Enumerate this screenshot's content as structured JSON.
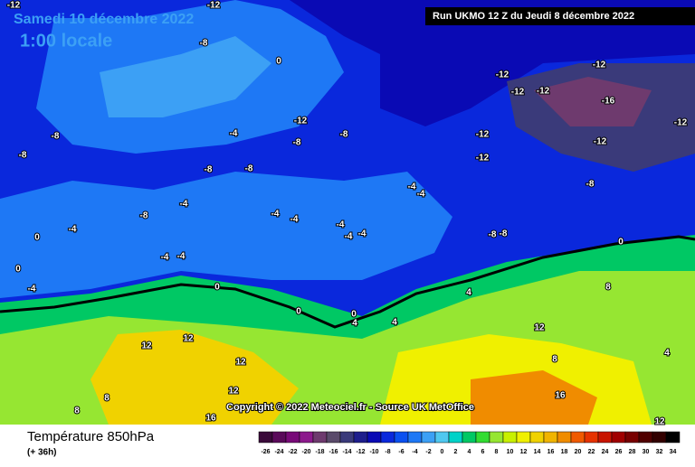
{
  "header": {
    "date": "Samedi 10 décembre 2022",
    "time": "1:00 locale",
    "run": "Run UKMO 12 Z du Jeudi 8 décembre 2022"
  },
  "copyright": "Copyright © 2022 Meteociel.fr - Source UK MetOffice",
  "footer": {
    "title": "Température 850hPa",
    "subtitle": "(+ 36h)"
  },
  "legend": {
    "ticks": [
      -26,
      -24,
      -22,
      -20,
      -18,
      -16,
      -14,
      -12,
      -10,
      -8,
      -6,
      -4,
      -2,
      0,
      2,
      4,
      6,
      8,
      10,
      12,
      14,
      16,
      18,
      20,
      22,
      24,
      26,
      28,
      30,
      32,
      34
    ],
    "colors": [
      "#3a0a3a",
      "#5a0a5a",
      "#780a78",
      "#8c1a8c",
      "#6e3a6e",
      "#5a4a6a",
      "#3a3a7a",
      "#1e1e8c",
      "#0a0ab4",
      "#0a28dc",
      "#0a50f0",
      "#1e78f5",
      "#3ca0f5",
      "#50c8f0",
      "#00d2c8",
      "#00c864",
      "#32dc32",
      "#96e632",
      "#c8f000",
      "#f0f000",
      "#f0d200",
      "#f0b400",
      "#f08c00",
      "#f05a00",
      "#e63200",
      "#c81400",
      "#a00000",
      "#780000",
      "#500000",
      "#320000",
      "#000000"
    ]
  },
  "map": {
    "labels": [
      -12,
      -8,
      0,
      -12,
      -8,
      -8,
      -4,
      -8,
      -8,
      -8,
      -4,
      -4,
      -4,
      -4,
      -4,
      -4,
      -4,
      -4,
      0,
      0,
      0,
      4,
      4,
      12,
      12,
      12,
      12,
      16,
      8,
      8,
      -12,
      -12,
      -12,
      -12,
      -16,
      -12,
      -12,
      -12,
      -8,
      -8,
      0,
      4,
      8,
      8,
      12,
      16,
      12,
      4,
      -4,
      -4,
      -8,
      -12,
      0,
      -4,
      0,
      -4,
      -8,
      -8,
      -12
    ]
  }
}
